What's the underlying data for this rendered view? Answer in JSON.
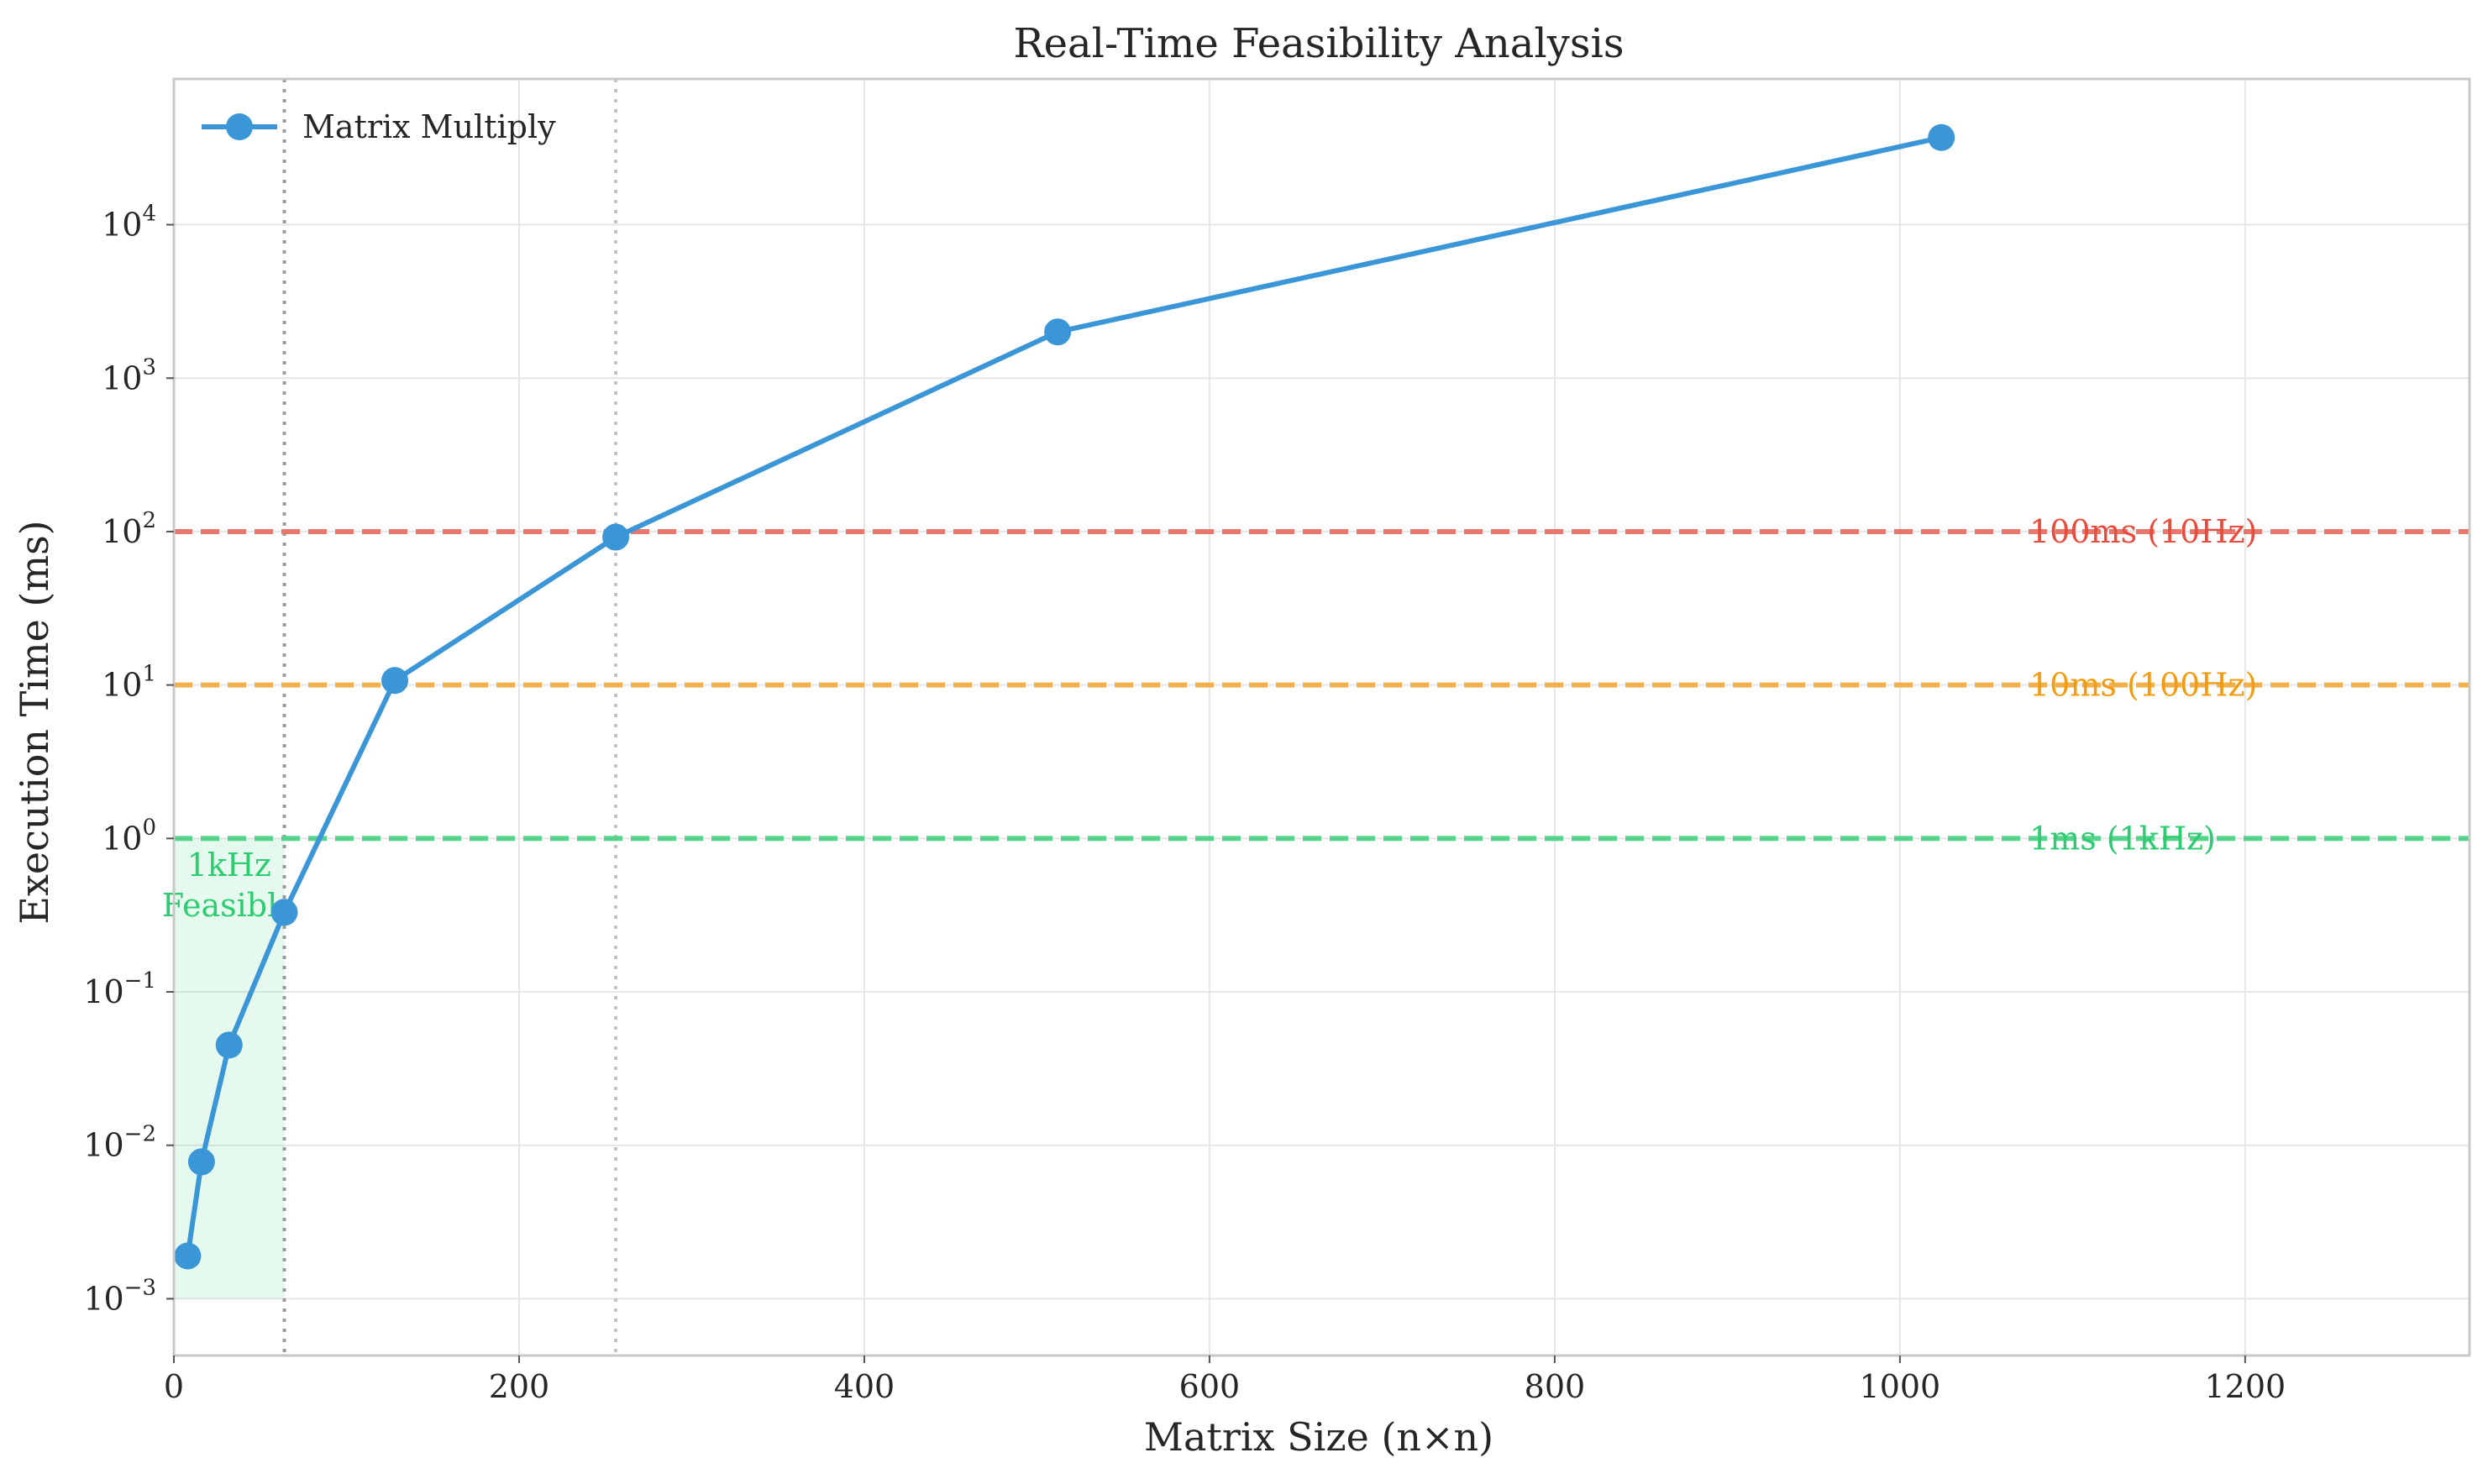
{
  "chart_data": {
    "type": "line",
    "title": "Real-Time Feasibility Analysis",
    "xlabel": "Matrix Size (n×n)",
    "ylabel": "Execution Time (ms)",
    "xlim": [
      0,
      1330
    ],
    "ylim_log10": [
      -3.37,
      4.95
    ],
    "y_scale": "log",
    "grid": true,
    "legend_position": "top-left",
    "x_ticks": [
      0,
      200,
      400,
      600,
      800,
      1000,
      1200
    ],
    "y_ticks": [
      {
        "base": "10",
        "exp": "−3",
        "value": 0.001
      },
      {
        "base": "10",
        "exp": "−2",
        "value": 0.01
      },
      {
        "base": "10",
        "exp": "−1",
        "value": 0.1
      },
      {
        "base": "10",
        "exp": "0",
        "value": 1
      },
      {
        "base": "10",
        "exp": "1",
        "value": 10
      },
      {
        "base": "10",
        "exp": "2",
        "value": 100
      },
      {
        "base": "10",
        "exp": "3",
        "value": 1000
      },
      {
        "base": "10",
        "exp": "4",
        "value": 10000
      }
    ],
    "series": [
      {
        "name": "Matrix Multiply",
        "color": "#3a96d6",
        "x": [
          8,
          16,
          32,
          64,
          128,
          256,
          512,
          1024
        ],
        "y": [
          0.0019,
          0.0078,
          0.045,
          0.33,
          10.7,
          92,
          2000,
          37000
        ]
      }
    ],
    "reference_lines": [
      {
        "label": "100ms (10Hz)",
        "value": 100,
        "color": "#e8786e",
        "text_color": "#e74c3c"
      },
      {
        "label": "10ms (100Hz)",
        "value": 10,
        "color": "#f0b14c",
        "text_color": "#f39c12"
      },
      {
        "label": "1ms (1kHz)",
        "value": 1,
        "color": "#55d38b",
        "text_color": "#2ecc71"
      }
    ],
    "vertical_markers": [
      64,
      256
    ],
    "shaded_region": {
      "x_range": [
        0,
        64
      ],
      "y_range": [
        0.001,
        1
      ],
      "color": "#2ecc71"
    },
    "region_label": [
      "1kHz",
      "Feasible"
    ]
  }
}
